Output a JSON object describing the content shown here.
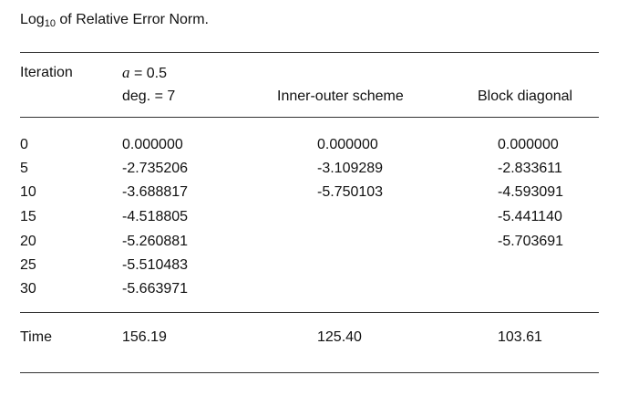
{
  "caption": {
    "prefix": "Log",
    "subscript": "10",
    "suffix": " of Relative Error Norm."
  },
  "header": {
    "iteration": "Iteration",
    "param_symbol": "a",
    "param_value": " = 0.5",
    "degree": "deg. = 7",
    "inner_outer": "Inner-outer scheme",
    "block_diagonal": "Block diagonal"
  },
  "rows": [
    {
      "iteration": "0",
      "poly": "0.000000",
      "inner_outer": "0.000000",
      "block_diag": "0.000000"
    },
    {
      "iteration": "5",
      "poly": "-2.735206",
      "inner_outer": "-3.109289",
      "block_diag": "-2.833611"
    },
    {
      "iteration": "10",
      "poly": "-3.688817",
      "inner_outer": "-5.750103",
      "block_diag": "-4.593091"
    },
    {
      "iteration": "15",
      "poly": "-4.518805",
      "inner_outer": "",
      "block_diag": "-5.441140"
    },
    {
      "iteration": "20",
      "poly": "-5.260881",
      "inner_outer": "",
      "block_diag": "-5.703691"
    },
    {
      "iteration": "25",
      "poly": "-5.510483",
      "inner_outer": "",
      "block_diag": ""
    },
    {
      "iteration": "30",
      "poly": "-5.663971",
      "inner_outer": "",
      "block_diag": ""
    }
  ],
  "time_row": {
    "label": "Time",
    "poly": "156.19",
    "inner_outer": "125.40",
    "block_diag": "103.61"
  }
}
